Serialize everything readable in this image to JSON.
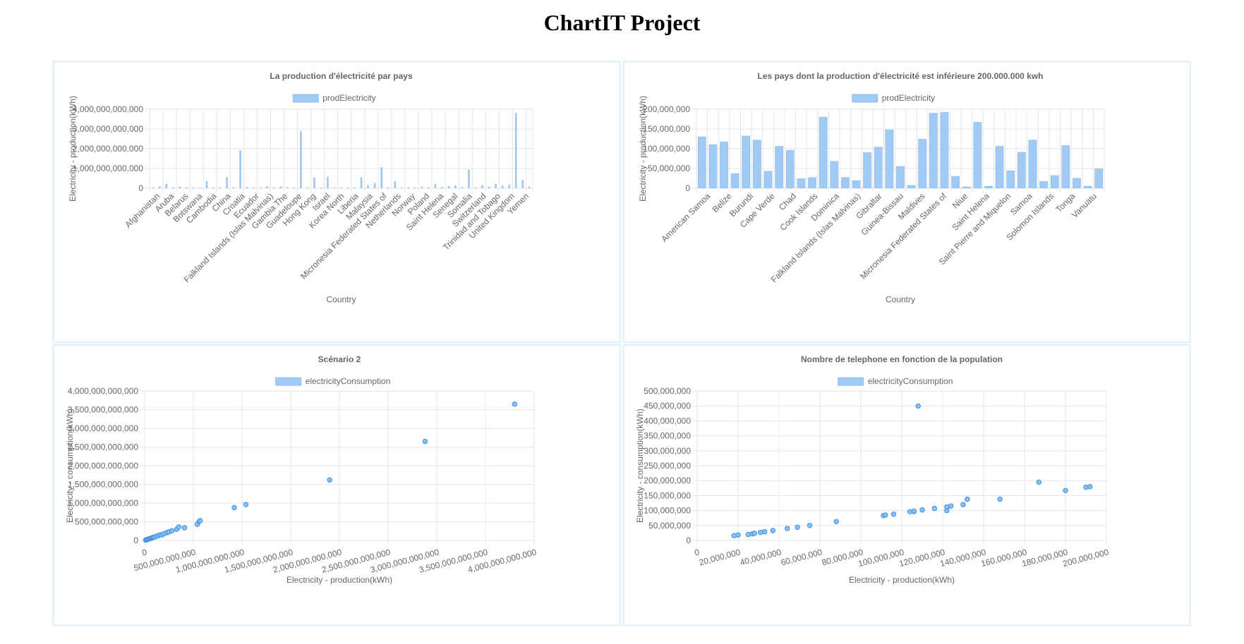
{
  "page": {
    "title": "ChartIT Project"
  },
  "colors": {
    "bar_fill": "#a0c9f3",
    "bar_stroke": "#90bfef",
    "point_fill": "#8cc0f2",
    "point_stroke": "#3b8fe0",
    "panel_border": "#e6f3fa"
  },
  "chart_data": [
    {
      "type": "bar",
      "title": "La production d'électricité par pays",
      "legend": "prodElectricity",
      "xlabel": "Country",
      "ylabel": "Electricity - production(kWh)",
      "ylim": [
        0,
        4000000000000
      ],
      "yticks": [
        0,
        1000000000000,
        2000000000000,
        3000000000000,
        4000000000000
      ],
      "bar_count": 57,
      "xtick_labels": [
        "Afghanistan",
        "Aruba",
        "Belarus",
        "Botswana",
        "Cambodia",
        "China",
        "Croatia",
        "Ecuador",
        "Falkland Islands (Islas Malvinas)",
        "Gambia The",
        "Guadeloupe",
        "Hong Kong",
        "Israel",
        "Korea North",
        "Liberia",
        "Malaysia",
        "Micronesia Federated States of",
        "Netherlands",
        "Norway",
        "Poland",
        "Saint Helena",
        "Senegal",
        "Somalia",
        "Switzerland",
        "Trinidad and Tobago",
        "United Kingdom",
        "Yemen"
      ],
      "values": [
        20000000000,
        80000000000,
        200000000000,
        30000000000,
        60000000000,
        40000000000,
        20000000000,
        10000000000,
        350000000000,
        10000000000,
        20000000000,
        550000000000,
        30000000000,
        1900000000000,
        40000000000,
        20000000000,
        10000000000,
        80000000000,
        20000000000,
        80000000000,
        30000000000,
        10000000000,
        2880000000000,
        20000000000,
        520000000000,
        10000000000,
        560000000000,
        10000000000,
        20000000000,
        10000000000,
        20000000000,
        540000000000,
        140000000000,
        250000000000,
        1040000000000,
        30000000000,
        330000000000,
        10000000000,
        20000000000,
        10000000000,
        70000000000,
        30000000000,
        200000000000,
        40000000000,
        90000000000,
        120000000000,
        40000000000,
        920000000000,
        30000000000,
        130000000000,
        60000000000,
        200000000000,
        120000000000,
        160000000000,
        3800000000000,
        400000000000,
        60000000000
      ]
    },
    {
      "type": "bar",
      "title": "Les pays dont la production d'électricité est inférieure 200.000.000 kwh",
      "legend": "prodElectricity",
      "xlabel": "Country",
      "ylabel": "Electricity - production(kWh)",
      "ylim": [
        0,
        200000000
      ],
      "yticks": [
        0,
        50000000,
        100000000,
        150000000,
        200000000
      ],
      "xtick_labels": [
        "American Samoa",
        "Belize",
        "Burundi",
        "Cape Verde",
        "Chad",
        "Cook Islands",
        "Dominica",
        "Falkland Islands (Islas Malvinas)",
        "Gibraltar",
        "Guinea-Bissau",
        "Maldives",
        "Micronesia Federated States of",
        "Niue",
        "Saint Helena",
        "Saint Pierre and Miquelon",
        "Samoa",
        "Solomon Islands",
        "Tonga",
        "Vanuatu"
      ],
      "values": [
        130000000,
        110000000,
        117000000,
        37000000,
        132000000,
        122000000,
        43000000,
        106000000,
        96000000,
        24000000,
        27000000,
        180000000,
        68000000,
        27000000,
        19000000,
        90000000,
        104000000,
        148000000,
        55000000,
        7000000,
        124000000,
        190000000,
        192000000,
        30000000,
        3000000,
        167000000,
        5000000,
        106000000,
        44000000,
        91000000,
        122000000,
        17000000,
        32000000,
        108000000,
        25000000,
        5000000,
        49000000
      ]
    },
    {
      "type": "scatter",
      "title": "Scénario 2",
      "legend": "electricityConsumption",
      "xlabel": "Electricity - production(kWh)",
      "ylabel": "Electricity - consumption(kWh)",
      "xlim": [
        0,
        4000000000000
      ],
      "ylim": [
        0,
        4000000000000
      ],
      "xticks": [
        0,
        500000000000,
        1000000000000,
        1500000000000,
        2000000000000,
        2500000000000,
        3000000000000,
        3500000000000,
        4000000000000
      ],
      "yticks": [
        0,
        500000000000,
        1000000000000,
        1500000000000,
        2000000000000,
        2500000000000,
        3000000000000,
        3500000000000,
        4000000000000
      ],
      "points": [
        [
          10000000000,
          10000000000
        ],
        [
          20000000000,
          20000000000
        ],
        [
          30000000000,
          28000000000
        ],
        [
          40000000000,
          38000000000
        ],
        [
          50000000000,
          45000000000
        ],
        [
          60000000000,
          55000000000
        ],
        [
          70000000000,
          60000000000
        ],
        [
          80000000000,
          75000000000
        ],
        [
          90000000000,
          85000000000
        ],
        [
          100000000000,
          90000000000
        ],
        [
          120000000000,
          110000000000
        ],
        [
          140000000000,
          130000000000
        ],
        [
          160000000000,
          150000000000
        ],
        [
          180000000000,
          150000000000
        ],
        [
          200000000000,
          180000000000
        ],
        [
          230000000000,
          210000000000
        ],
        [
          250000000000,
          230000000000
        ],
        [
          280000000000,
          260000000000
        ],
        [
          330000000000,
          300000000000
        ],
        [
          350000000000,
          360000000000
        ],
        [
          410000000000,
          340000000000
        ],
        [
          540000000000,
          430000000000
        ],
        [
          560000000000,
          510000000000
        ],
        [
          570000000000,
          530000000000
        ],
        [
          920000000000,
          880000000000
        ],
        [
          1040000000000,
          960000000000
        ],
        [
          1900000000000,
          1620000000000
        ],
        [
          2880000000000,
          2650000000000
        ],
        [
          3800000000000,
          3650000000000
        ]
      ]
    },
    {
      "type": "scatter",
      "title": "Nombre de telephone en fonction de la population",
      "legend": "electricityConsumption",
      "xlabel": "Electricity - production(kWh)",
      "ylabel": "Electricity - consumption(kWh)",
      "xlim": [
        0,
        200000000
      ],
      "ylim": [
        0,
        500000000
      ],
      "xticks": [
        0,
        20000000,
        40000000,
        60000000,
        80000000,
        100000000,
        120000000,
        140000000,
        160000000,
        180000000,
        200000000
      ],
      "yticks": [
        0,
        50000000,
        100000000,
        150000000,
        200000000,
        250000000,
        300000000,
        350000000,
        400000000,
        450000000,
        500000000
      ],
      "points": [
        [
          18000000,
          16000000
        ],
        [
          20000000,
          18000000
        ],
        [
          25000000,
          20000000
        ],
        [
          27000000,
          22000000
        ],
        [
          28000000,
          24000000
        ],
        [
          31000000,
          27000000
        ],
        [
          33000000,
          29000000
        ],
        [
          37000000,
          33000000
        ],
        [
          44000000,
          40000000
        ],
        [
          49000000,
          44000000
        ],
        [
          55000000,
          50000000
        ],
        [
          68000000,
          63000000
        ],
        [
          91000000,
          83000000
        ],
        [
          92000000,
          85000000
        ],
        [
          96000000,
          88000000
        ],
        [
          104000000,
          96000000
        ],
        [
          106000000,
          97000000
        ],
        [
          106000000,
          98000000
        ],
        [
          108000000,
          450000000
        ],
        [
          110000000,
          102000000
        ],
        [
          116000000,
          107000000
        ],
        [
          122000000,
          100000000
        ],
        [
          122000000,
          112000000
        ],
        [
          124000000,
          115000000
        ],
        [
          130000000,
          120000000
        ],
        [
          132000000,
          138000000
        ],
        [
          148000000,
          138000000
        ],
        [
          167000000,
          195000000
        ],
        [
          180000000,
          167000000
        ],
        [
          190000000,
          178000000
        ],
        [
          192000000,
          180000000
        ]
      ]
    }
  ]
}
